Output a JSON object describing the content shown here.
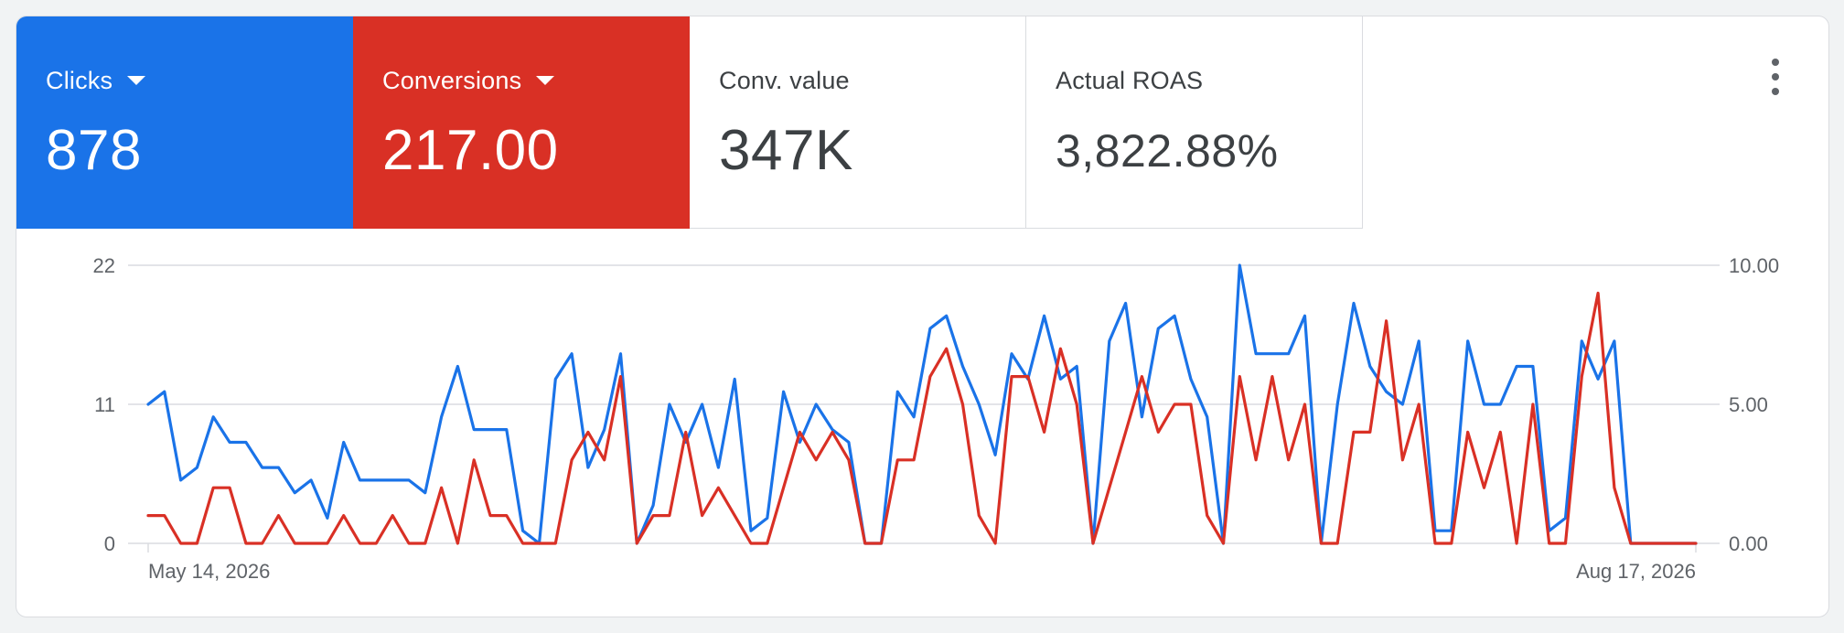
{
  "metrics": [
    {
      "label": "Clicks",
      "value": "878",
      "dropdown": true,
      "color": "#1a73e8"
    },
    {
      "label": "Conversions",
      "value": "217.00",
      "dropdown": true,
      "color": "#d93025"
    },
    {
      "label": "Conv. value",
      "value": "347K",
      "dropdown": false
    },
    {
      "label": "Actual ROAS",
      "value": "3,822.88%",
      "dropdown": false
    }
  ],
  "menu_icon": "more-vert-icon",
  "chart_data": {
    "type": "line",
    "x_start_label": "May 14, 2026",
    "x_end_label": "Aug 17, 2026",
    "grid": true,
    "y_left": {
      "ticks": [
        "0",
        "11",
        "22"
      ],
      "range": [
        0,
        22
      ]
    },
    "y_right": {
      "ticks": [
        "0.00",
        "5.00",
        "10.00"
      ],
      "range": [
        0,
        10
      ]
    },
    "series": [
      {
        "axis": "left",
        "color": "#1a73e8",
        "values": [
          11,
          12,
          5,
          6,
          10,
          8,
          8,
          6,
          6,
          4,
          5,
          2,
          8,
          5,
          5,
          5,
          5,
          4,
          10,
          14,
          9,
          9,
          9,
          1,
          0,
          13,
          15,
          6,
          9,
          15,
          0,
          3,
          11,
          8,
          11,
          6,
          13,
          1,
          2,
          12,
          8,
          11,
          9,
          8,
          0,
          0,
          12,
          10,
          17,
          18,
          14,
          11,
          7,
          15,
          13,
          18,
          13,
          14,
          0,
          16,
          19,
          10,
          17,
          18,
          13,
          10,
          0,
          22,
          15,
          15,
          15,
          18,
          0,
          11,
          19,
          14,
          12,
          11,
          16,
          1,
          1,
          16,
          11,
          11,
          14,
          14,
          1,
          2,
          16,
          13,
          16,
          0,
          0,
          0,
          0,
          0
        ]
      },
      {
        "axis": "right",
        "color": "#d93025",
        "values": [
          1,
          1,
          0,
          0,
          2,
          2,
          0,
          0,
          1,
          0,
          0,
          0,
          1,
          0,
          0,
          1,
          0,
          0,
          2,
          0,
          3,
          1,
          1,
          0,
          0,
          0,
          3,
          4,
          3,
          6,
          0,
          1,
          1,
          4,
          1,
          2,
          1,
          0,
          0,
          2,
          4,
          3,
          4,
          3,
          0,
          0,
          3,
          3,
          6,
          7,
          5,
          1,
          0,
          6,
          6,
          4,
          7,
          5,
          0,
          2,
          4,
          6,
          4,
          5,
          5,
          1,
          0,
          6,
          3,
          6,
          3,
          5,
          0,
          0,
          4,
          4,
          8,
          3,
          5,
          0,
          0,
          4,
          2,
          4,
          0,
          5,
          0,
          0,
          6,
          9,
          2,
          0,
          0,
          0,
          0,
          0
        ]
      }
    ]
  }
}
